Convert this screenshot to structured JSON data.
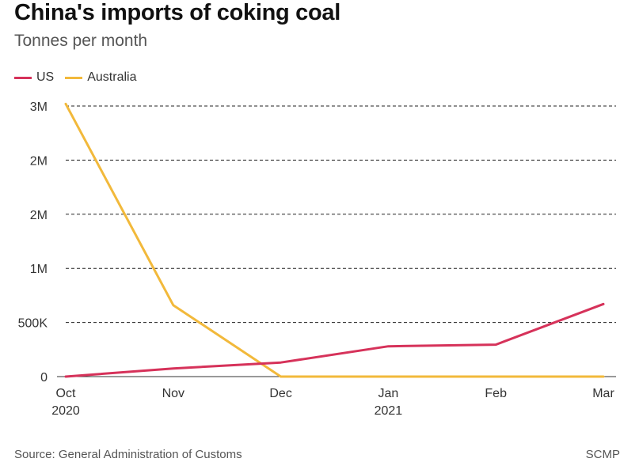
{
  "header": {
    "title": "China's imports of coking coal",
    "subtitle": "Tonnes per month"
  },
  "footer": {
    "source": "Source: General Administration of Customs",
    "credit": "SCMP"
  },
  "chart_data": {
    "type": "line",
    "title": "China's imports of coking coal",
    "subtitle": "Tonnes per month",
    "xlabel": "",
    "ylabel": "",
    "categories": [
      "Oct",
      "Nov",
      "Dec",
      "Jan",
      "Feb",
      "Mar"
    ],
    "category_years": [
      "2020",
      "",
      "",
      "2021",
      "",
      ""
    ],
    "ylim": [
      0,
      2500000
    ],
    "yticks": [
      0,
      500000,
      1000000,
      1500000,
      2000000,
      2500000
    ],
    "ytick_labels": [
      "0",
      "500K",
      "1M",
      "2M",
      "2M",
      "3M"
    ],
    "grid": true,
    "legend_position": "top-left",
    "series": [
      {
        "name": "US",
        "color": "#d6325a",
        "values": [
          0,
          75000,
          130000,
          280000,
          295000,
          670000
        ]
      },
      {
        "name": "Australia",
        "color": "#f2b93b",
        "values": [
          2520000,
          660000,
          0,
          0,
          0,
          0
        ]
      }
    ]
  }
}
